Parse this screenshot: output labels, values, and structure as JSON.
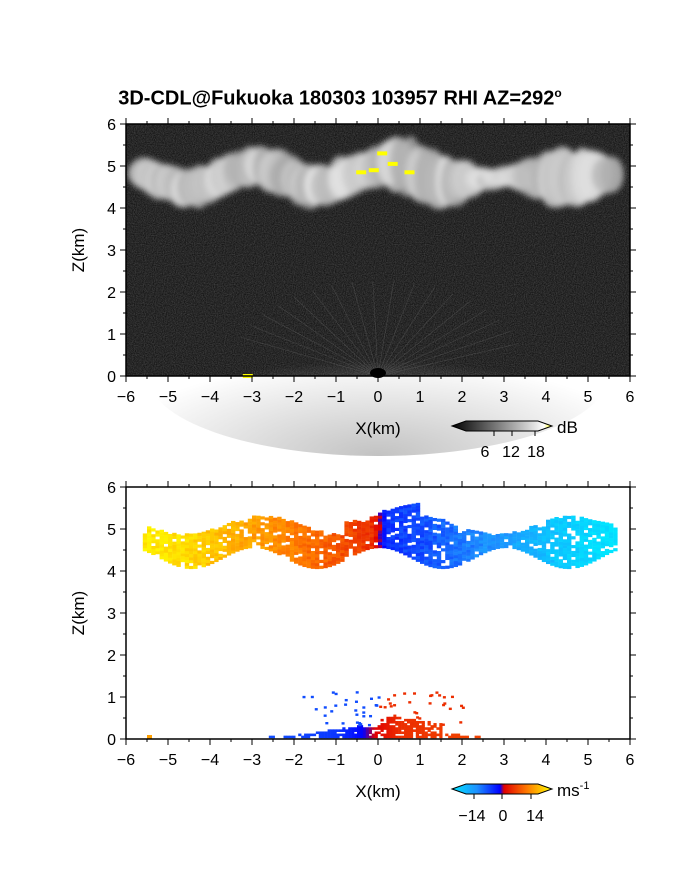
{
  "title": "3D-CDL@Fukuoka 180303 103957 RHI AZ=292",
  "title_sup": "o",
  "chart_data": [
    {
      "type": "heatmap",
      "panel": "top",
      "quantity": "backscatter",
      "xlabel": "X(km)",
      "ylabel": "Z(km)",
      "xlim": [
        -6,
        6
      ],
      "ylim": [
        0,
        6
      ],
      "xticks": [
        -6,
        -5,
        -4,
        -3,
        -2,
        -1,
        0,
        1,
        2,
        3,
        4,
        5,
        6
      ],
      "yticks": [
        0,
        1,
        2,
        3,
        4,
        5,
        6
      ],
      "colormap": "grayscale",
      "colorbar": {
        "unit": "dB",
        "ticks": [
          6,
          12,
          18
        ],
        "end_color": "#ffff00"
      },
      "features": {
        "cloud_layer_km": [
          4.0,
          5.4
        ],
        "high_value_spots": [
          {
            "x": -0.4,
            "z": 4.85
          },
          {
            "x": -0.1,
            "z": 4.9
          },
          {
            "x": 0.1,
            "z": 5.3
          },
          {
            "x": 0.35,
            "z": 5.05
          },
          {
            "x": 0.75,
            "z": 4.85
          },
          {
            "x": -3.1,
            "z": 0.0
          }
        ]
      }
    },
    {
      "type": "heatmap",
      "panel": "bottom",
      "quantity": "radial velocity",
      "xlabel": "X(km)",
      "ylabel": "Z(km)",
      "xlim": [
        -6,
        6
      ],
      "ylim": [
        0,
        6
      ],
      "xticks": [
        -6,
        -5,
        -4,
        -3,
        -2,
        -1,
        0,
        1,
        2,
        3,
        4,
        5,
        6
      ],
      "yticks": [
        0,
        1,
        2,
        3,
        4,
        5,
        6
      ],
      "colormap": "cyan-blue-red-yellow",
      "colorbar": {
        "unit": "ms",
        "unit_sup": "-1",
        "ticks": [
          "−14",
          "0",
          "14"
        ],
        "range": [
          -14,
          14
        ]
      },
      "features": {
        "cloud_layer_km": [
          4.1,
          5.4
        ],
        "cloud_velocity_profile": [
          {
            "x": -5.5,
            "v": 13
          },
          {
            "x": -4.5,
            "v": 12
          },
          {
            "x": -3.5,
            "v": 10
          },
          {
            "x": -2.0,
            "v": 7
          },
          {
            "x": -1.0,
            "v": 5
          },
          {
            "x": -0.2,
            "v": 3
          },
          {
            "x": 0.2,
            "v": -3
          },
          {
            "x": 1.0,
            "v": -4
          },
          {
            "x": 2.0,
            "v": -6
          },
          {
            "x": 3.0,
            "v": -8
          },
          {
            "x": 4.0,
            "v": -11
          },
          {
            "x": 5.0,
            "v": -13
          },
          {
            "x": 5.6,
            "v": -14
          }
        ],
        "boundary_layer_km": [
          0.0,
          1.15
        ],
        "boundary_layer_velocity": [
          {
            "x": -2.5,
            "v": -4
          },
          {
            "x": -1.0,
            "v": -3
          },
          {
            "x": 0.5,
            "v": 3
          },
          {
            "x": 2.0,
            "v": 4
          }
        ]
      }
    }
  ]
}
